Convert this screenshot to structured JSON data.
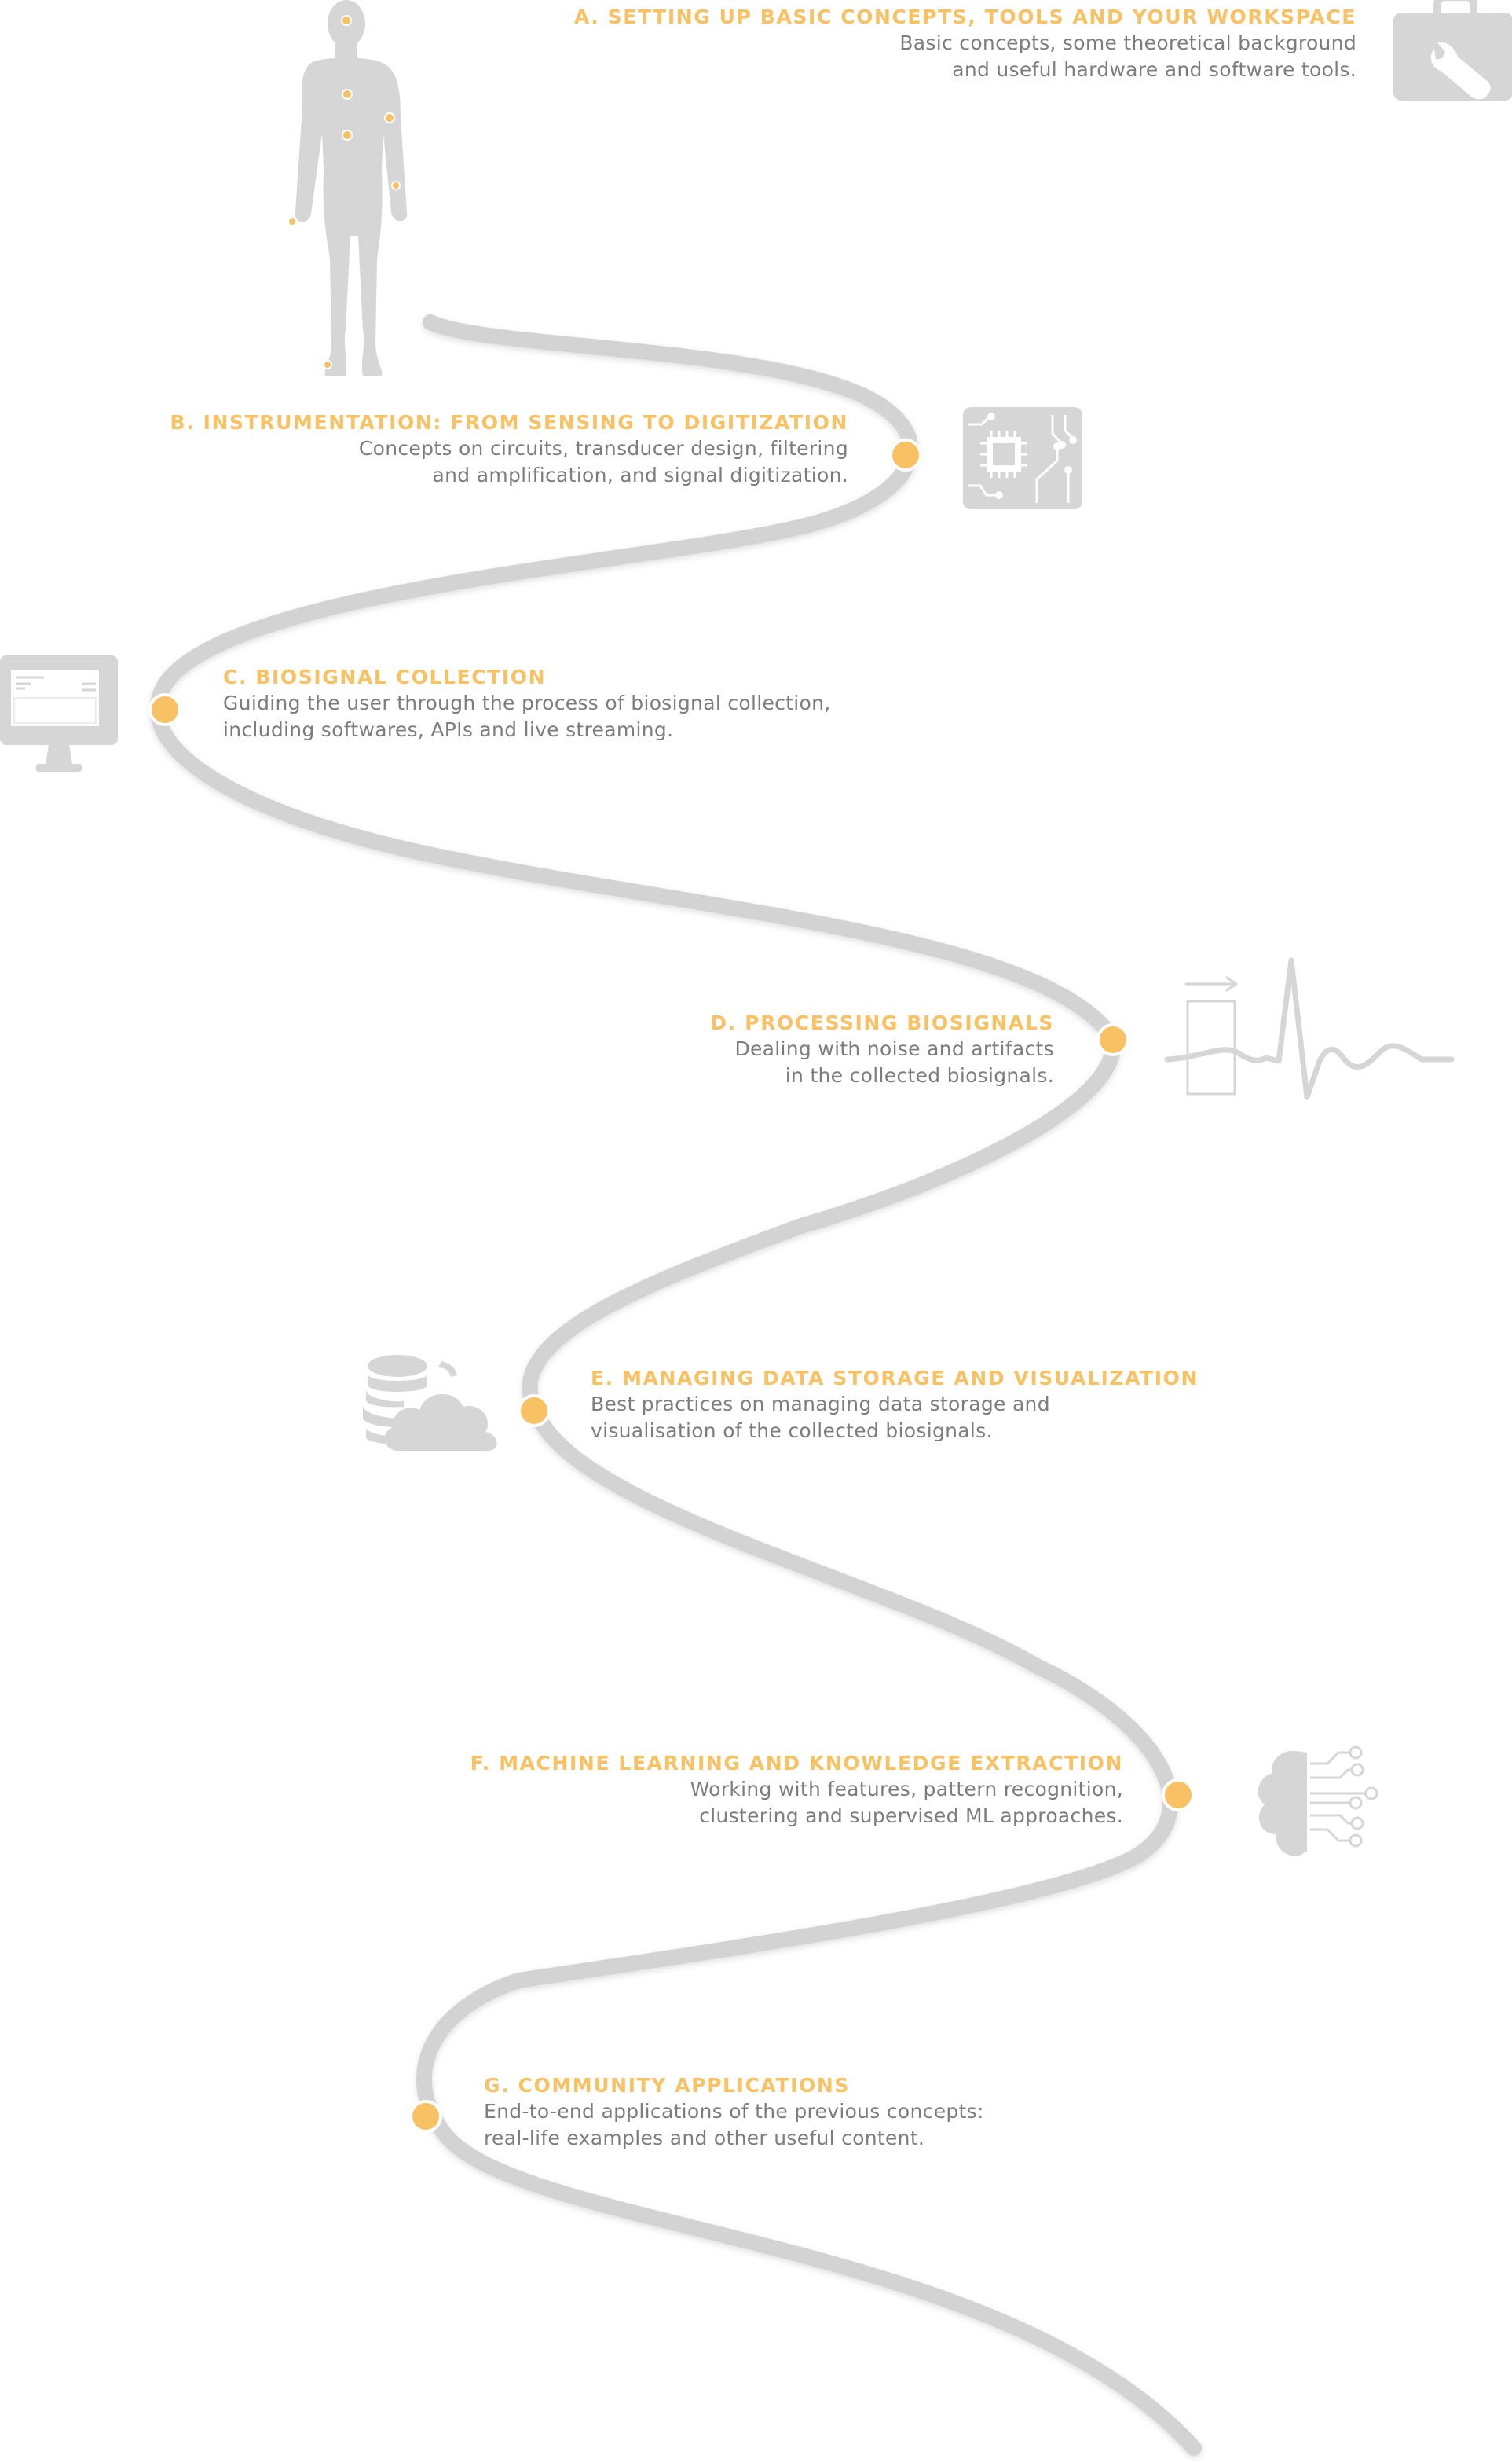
{
  "steps": [
    {
      "id": "a",
      "title": "A. SETTING UP BASIC CONCEPTS, TOOLS AND YOUR WORKSPACE",
      "lines": [
        "Basic concepts, some theoretical background",
        "and useful hardware and software tools."
      ],
      "icon": "toolbox-wrench-icon"
    },
    {
      "id": "b",
      "title": "B. INSTRUMENTATION: FROM SENSING TO DIGITIZATION",
      "lines": [
        "Concepts on circuits, transducer design, filtering",
        "and amplification, and signal digitization."
      ],
      "icon": "microchip-icon"
    },
    {
      "id": "c",
      "title": "C. BIOSIGNAL COLLECTION",
      "lines": [
        "Guiding the user through the process of biosignal collection,",
        "including softwares, APIs and live streaming."
      ],
      "icon": "computer-monitor-icon"
    },
    {
      "id": "d",
      "title": "D. PROCESSING BIOSIGNALS",
      "lines": [
        "Dealing with noise and artifacts",
        "in the collected biosignals."
      ],
      "icon": "ecg-waveform-icon"
    },
    {
      "id": "e",
      "title": "E. MANAGING DATA STORAGE AND VISUALIZATION",
      "lines": [
        "Best practices on managing data storage and",
        "visualisation of the collected biosignals."
      ],
      "icon": "database-cloud-icon"
    },
    {
      "id": "f",
      "title": "F. MACHINE LEARNING AND KNOWLEDGE EXTRACTION",
      "lines": [
        "Working with features, pattern recognition,",
        "clustering and supervised ML approaches."
      ],
      "icon": "brain-circuit-icon"
    },
    {
      "id": "g",
      "title": "G. COMMUNITY APPLICATIONS",
      "lines": [
        "End-to-end applications of the previous concepts:",
        "real-life examples and other useful content."
      ],
      "icon": "community-icon"
    }
  ],
  "colors": {
    "accent": "#f8c164",
    "path": "#d3d3d3",
    "icon": "#d6d6d6",
    "text": "#7d7d7d"
  }
}
